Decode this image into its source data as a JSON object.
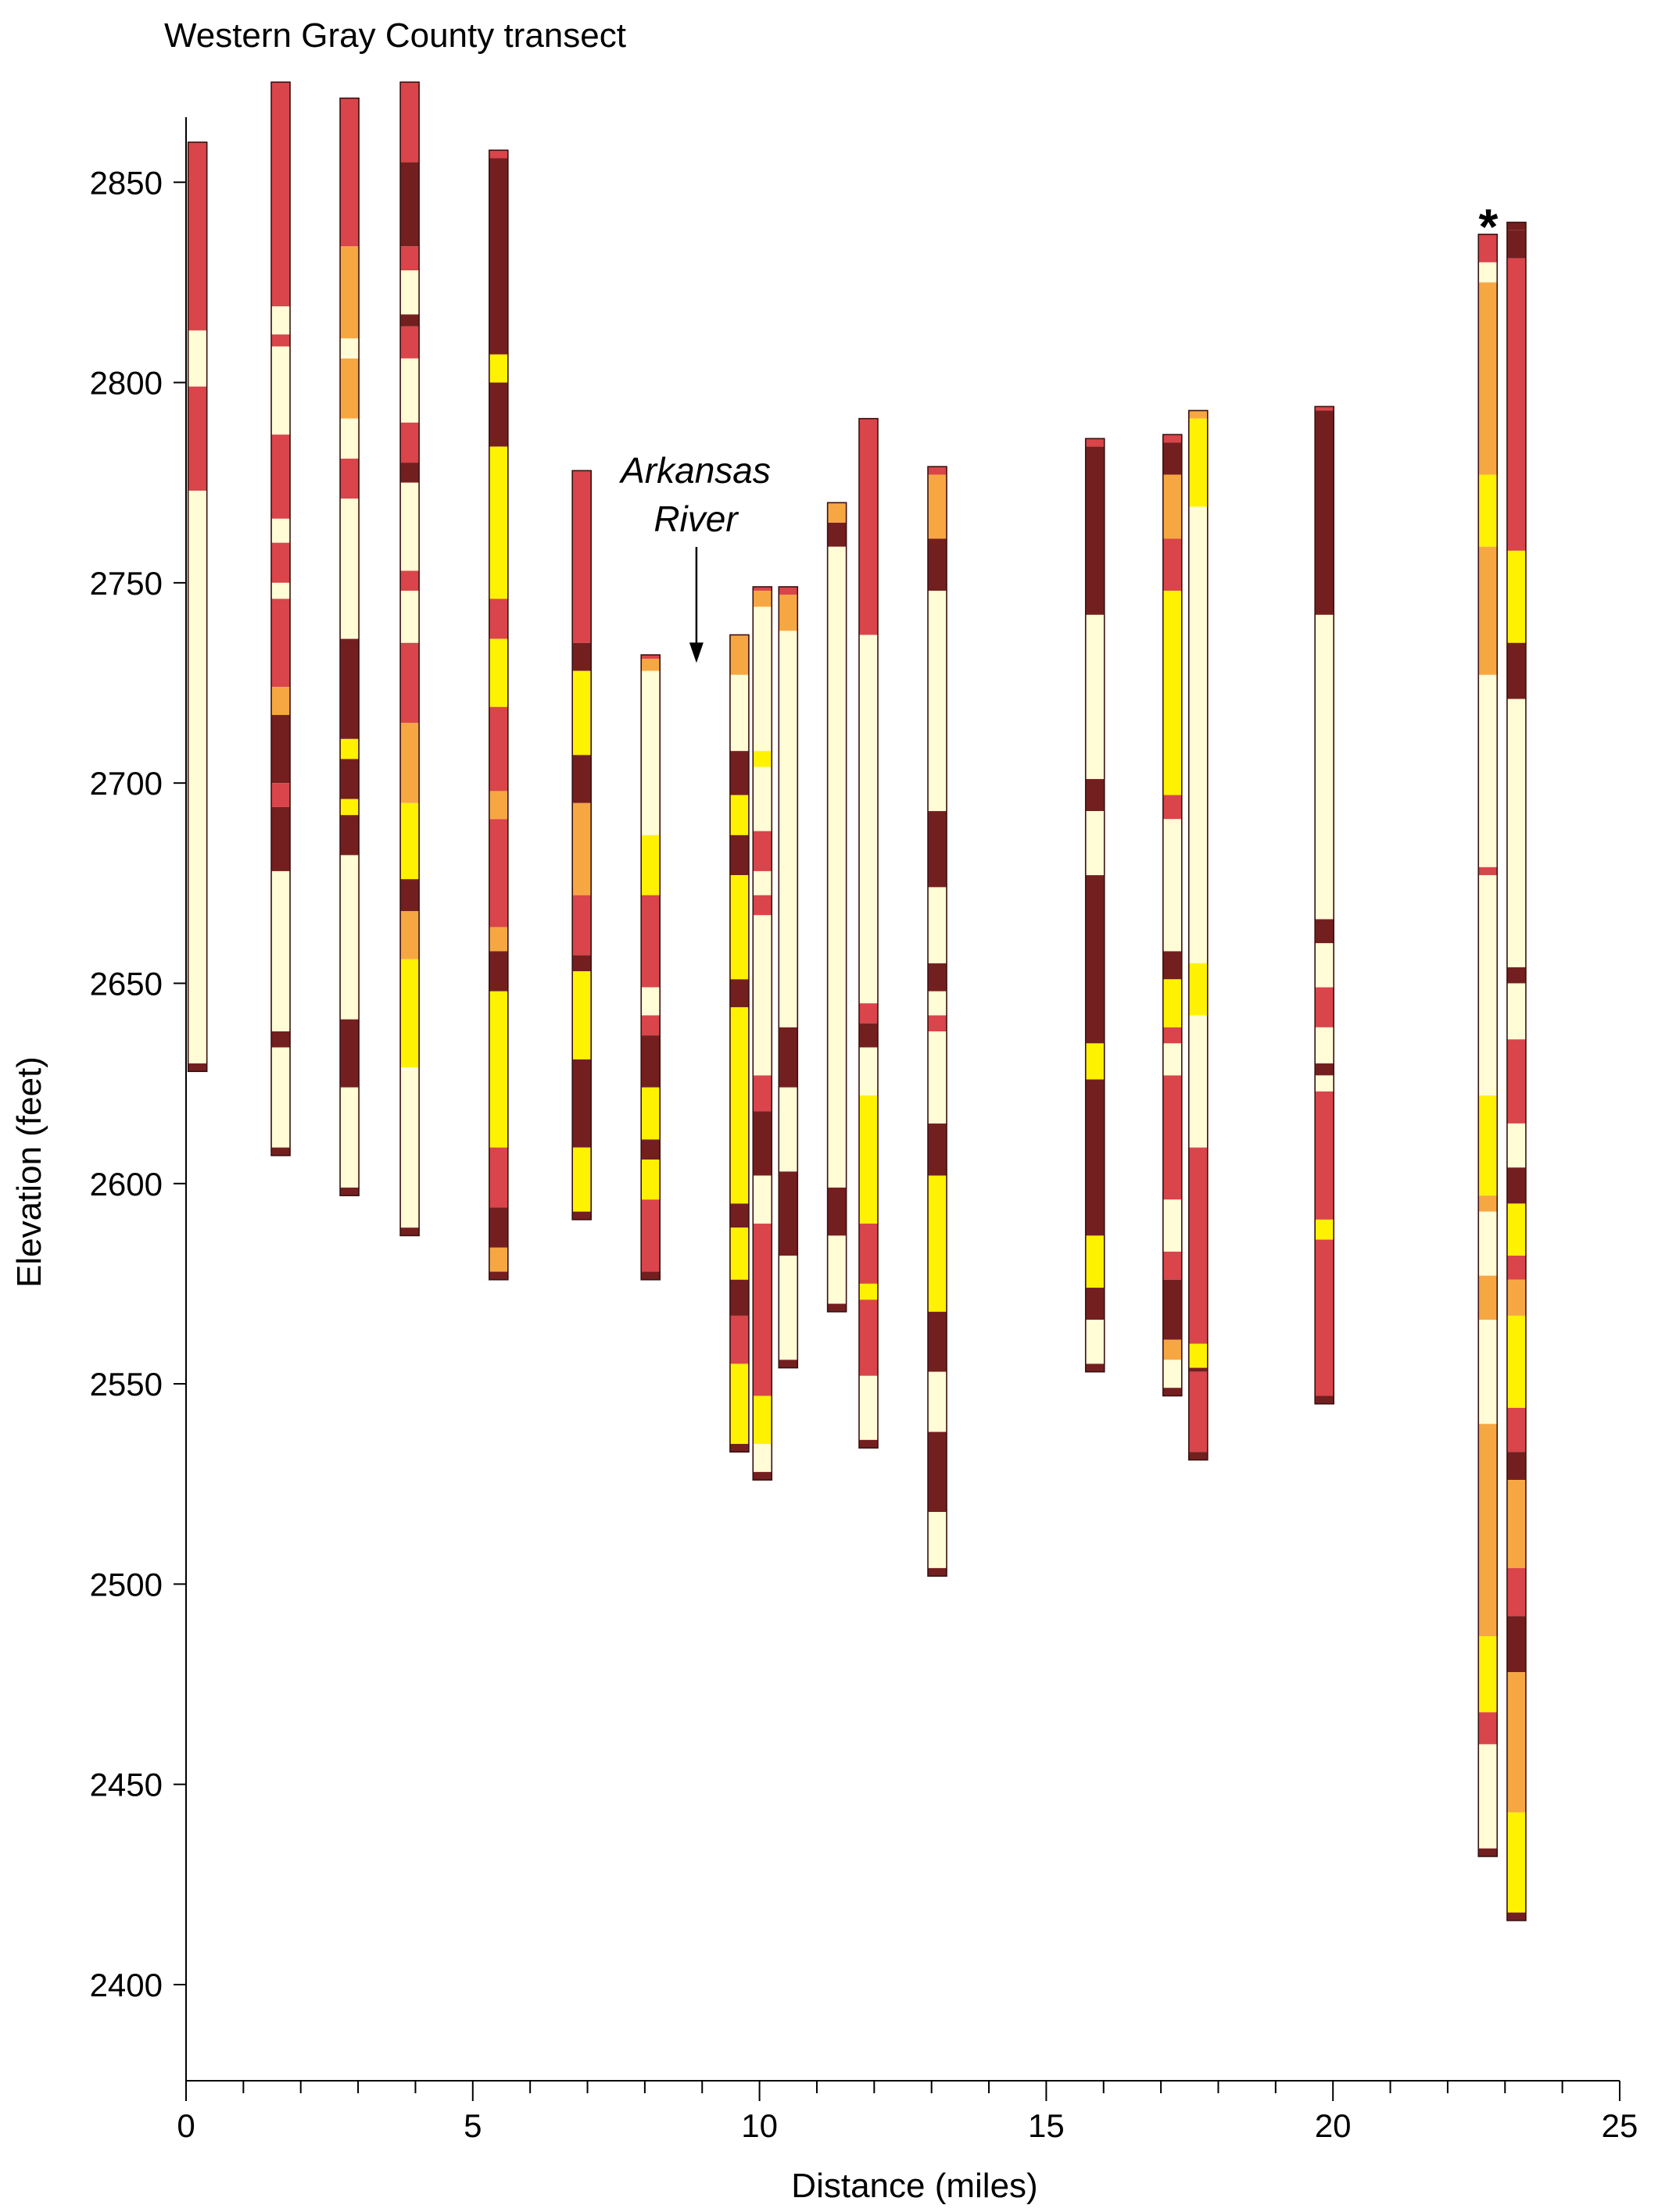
{
  "chart_data": {
    "type": "bar",
    "title": "Western Gray County transect",
    "xlabel": "Distance (miles)",
    "ylabel": "Elevation (feet)",
    "xlim": [
      0,
      25
    ],
    "ylim": [
      2376,
      2876
    ],
    "x_ticks_major": [
      0,
      5,
      10,
      15,
      20,
      25
    ],
    "x_tick_labels": [
      "0",
      "5",
      "10",
      "15",
      "20",
      "25"
    ],
    "x_tick_minor_step": 1,
    "y_ticks": [
      2400,
      2450,
      2500,
      2550,
      2600,
      2650,
      2700,
      2750,
      2800,
      2850
    ],
    "y_tick_labels": [
      "2400",
      "2450",
      "2500",
      "2550",
      "2600",
      "2650",
      "2700",
      "2750",
      "2800",
      "2850"
    ],
    "grid": false,
    "legend": "none",
    "colors": {
      "L": "#FFFCD6",
      "Y": "#FFF200",
      "O": "#F7A742",
      "R": "#D9454A",
      "D": "#741F1F"
    },
    "annotations": [
      {
        "text_line1": "Arkansas",
        "text_line2": "River",
        "x": 8.9,
        "y": 2730,
        "arrow": "down"
      },
      {
        "text": "*",
        "x": 22.7,
        "y": 2839
      }
    ],
    "wells": [
      {
        "x": 0.2,
        "top": 2860,
        "bottom": 2628,
        "layers": [
          [
            "R",
            2813
          ],
          [
            "L",
            2799
          ],
          [
            "R",
            2773
          ],
          [
            "L",
            2630
          ],
          [
            "D",
            2628
          ]
        ]
      },
      {
        "x": 1.65,
        "top": 2875,
        "bottom": 2607,
        "layers": [
          [
            "R",
            2819
          ],
          [
            "L",
            2812
          ],
          [
            "R",
            2809
          ],
          [
            "L",
            2787
          ],
          [
            "R",
            2766
          ],
          [
            "L",
            2760
          ],
          [
            "R",
            2750
          ],
          [
            "L",
            2746
          ],
          [
            "R",
            2724
          ],
          [
            "O",
            2717
          ],
          [
            "D",
            2700
          ],
          [
            "R",
            2694
          ],
          [
            "D",
            2678
          ],
          [
            "L",
            2638
          ],
          [
            "D",
            2634
          ],
          [
            "L",
            2609
          ],
          [
            "D",
            2607
          ]
        ]
      },
      {
        "x": 2.85,
        "top": 2871,
        "bottom": 2597,
        "layers": [
          [
            "R",
            2834
          ],
          [
            "O",
            2811
          ],
          [
            "L",
            2806
          ],
          [
            "O",
            2791
          ],
          [
            "L",
            2781
          ],
          [
            "R",
            2771
          ],
          [
            "L",
            2736
          ],
          [
            "D",
            2711
          ],
          [
            "Y",
            2706
          ],
          [
            "D",
            2696
          ],
          [
            "Y",
            2692
          ],
          [
            "D",
            2682
          ],
          [
            "L",
            2641
          ],
          [
            "D",
            2624
          ],
          [
            "L",
            2599
          ],
          [
            "D",
            2597
          ]
        ]
      },
      {
        "x": 3.9,
        "top": 2875,
        "bottom": 2587,
        "layers": [
          [
            "R",
            2855
          ],
          [
            "D",
            2834
          ],
          [
            "R",
            2828
          ],
          [
            "L",
            2817
          ],
          [
            "D",
            2814
          ],
          [
            "R",
            2806
          ],
          [
            "L",
            2790
          ],
          [
            "R",
            2780
          ],
          [
            "D",
            2775
          ],
          [
            "L",
            2753
          ],
          [
            "R",
            2748
          ],
          [
            "L",
            2735
          ],
          [
            "R",
            2715
          ],
          [
            "O",
            2695
          ],
          [
            "Y",
            2676
          ],
          [
            "D",
            2668
          ],
          [
            "O",
            2656
          ],
          [
            "Y",
            2629
          ],
          [
            "L",
            2589
          ],
          [
            "D",
            2587
          ]
        ]
      },
      {
        "x": 5.45,
        "top": 2858,
        "bottom": 2576,
        "layers": [
          [
            "R",
            2856
          ],
          [
            "D",
            2807
          ],
          [
            "Y",
            2800
          ],
          [
            "D",
            2784
          ],
          [
            "Y",
            2746
          ],
          [
            "R",
            2736
          ],
          [
            "Y",
            2719
          ],
          [
            "R",
            2698
          ],
          [
            "O",
            2691
          ],
          [
            "R",
            2664
          ],
          [
            "O",
            2658
          ],
          [
            "D",
            2648
          ],
          [
            "Y",
            2609
          ],
          [
            "R",
            2594
          ],
          [
            "D",
            2584
          ],
          [
            "O",
            2578
          ],
          [
            "D",
            2576
          ]
        ]
      },
      {
        "x": 6.9,
        "top": 2778,
        "bottom": 2591,
        "layers": [
          [
            "R",
            2735
          ],
          [
            "D",
            2728
          ],
          [
            "Y",
            2707
          ],
          [
            "D",
            2695
          ],
          [
            "O",
            2672
          ],
          [
            "R",
            2657
          ],
          [
            "D",
            2653
          ],
          [
            "Y",
            2631
          ],
          [
            "D",
            2609
          ],
          [
            "Y",
            2593
          ],
          [
            "D",
            2591
          ]
        ]
      },
      {
        "x": 8.1,
        "top": 2732,
        "bottom": 2576,
        "layers": [
          [
            "R",
            2731
          ],
          [
            "O",
            2728
          ],
          [
            "L",
            2687
          ],
          [
            "Y",
            2672
          ],
          [
            "R",
            2649
          ],
          [
            "L",
            2642
          ],
          [
            "R",
            2637
          ],
          [
            "D",
            2624
          ],
          [
            "Y",
            2611
          ],
          [
            "D",
            2606
          ],
          [
            "Y",
            2596
          ],
          [
            "R",
            2578
          ],
          [
            "D",
            2576
          ]
        ]
      },
      {
        "x": 9.65,
        "top": 2737,
        "bottom": 2533,
        "layers": [
          [
            "O",
            2727
          ],
          [
            "L",
            2708
          ],
          [
            "D",
            2697
          ],
          [
            "Y",
            2687
          ],
          [
            "D",
            2677
          ],
          [
            "Y",
            2651
          ],
          [
            "D",
            2644
          ],
          [
            "Y",
            2595
          ],
          [
            "D",
            2589
          ],
          [
            "Y",
            2576
          ],
          [
            "D",
            2567
          ],
          [
            "R",
            2555
          ],
          [
            "Y",
            2535
          ],
          [
            "D",
            2533
          ]
        ]
      },
      {
        "x": 10.05,
        "top": 2749,
        "bottom": 2526,
        "layers": [
          [
            "R",
            2748
          ],
          [
            "O",
            2744
          ],
          [
            "L",
            2708
          ],
          [
            "Y",
            2704
          ],
          [
            "L",
            2688
          ],
          [
            "R",
            2678
          ],
          [
            "L",
            2672
          ],
          [
            "R",
            2667
          ],
          [
            "L",
            2627
          ],
          [
            "R",
            2618
          ],
          [
            "D",
            2602
          ],
          [
            "L",
            2590
          ],
          [
            "R",
            2547
          ],
          [
            "Y",
            2535
          ],
          [
            "L",
            2528
          ],
          [
            "D",
            2526
          ]
        ]
      },
      {
        "x": 10.5,
        "top": 2749,
        "bottom": 2554,
        "layers": [
          [
            "R",
            2747
          ],
          [
            "O",
            2738
          ],
          [
            "L",
            2639
          ],
          [
            "D",
            2624
          ],
          [
            "L",
            2603
          ],
          [
            "D",
            2582
          ],
          [
            "L",
            2556
          ],
          [
            "D",
            2554
          ]
        ]
      },
      {
        "x": 11.35,
        "top": 2770,
        "bottom": 2568,
        "layers": [
          [
            "O",
            2765
          ],
          [
            "D",
            2759
          ],
          [
            "L",
            2599
          ],
          [
            "D",
            2587
          ],
          [
            "L",
            2570
          ],
          [
            "D",
            2568
          ]
        ]
      },
      {
        "x": 11.9,
        "top": 2791,
        "bottom": 2534,
        "layers": [
          [
            "R",
            2737
          ],
          [
            "L",
            2645
          ],
          [
            "R",
            2640
          ],
          [
            "D",
            2634
          ],
          [
            "L",
            2622
          ],
          [
            "Y",
            2590
          ],
          [
            "R",
            2575
          ],
          [
            "Y",
            2571
          ],
          [
            "R",
            2552
          ],
          [
            "L",
            2536
          ],
          [
            "D",
            2534
          ]
        ]
      },
      {
        "x": 13.1,
        "top": 2779,
        "bottom": 2502,
        "layers": [
          [
            "R",
            2777
          ],
          [
            "O",
            2761
          ],
          [
            "D",
            2748
          ],
          [
            "L",
            2693
          ],
          [
            "D",
            2674
          ],
          [
            "L",
            2655
          ],
          [
            "D",
            2648
          ],
          [
            "L",
            2642
          ],
          [
            "R",
            2638
          ],
          [
            "L",
            2615
          ],
          [
            "D",
            2602
          ],
          [
            "Y",
            2568
          ],
          [
            "D",
            2553
          ],
          [
            "L",
            2538
          ],
          [
            "D",
            2518
          ],
          [
            "L",
            2504
          ],
          [
            "D",
            2502
          ]
        ]
      },
      {
        "x": 15.85,
        "top": 2786,
        "bottom": 2553,
        "layers": [
          [
            "R",
            2784
          ],
          [
            "D",
            2742
          ],
          [
            "L",
            2701
          ],
          [
            "D",
            2693
          ],
          [
            "L",
            2677
          ],
          [
            "D",
            2635
          ],
          [
            "Y",
            2626
          ],
          [
            "D",
            2587
          ],
          [
            "Y",
            2574
          ],
          [
            "D",
            2566
          ],
          [
            "L",
            2555
          ],
          [
            "D",
            2553
          ]
        ]
      },
      {
        "x": 17.2,
        "top": 2787,
        "bottom": 2547,
        "layers": [
          [
            "R",
            2785
          ],
          [
            "D",
            2777
          ],
          [
            "O",
            2761
          ],
          [
            "R",
            2748
          ],
          [
            "Y",
            2697
          ],
          [
            "R",
            2691
          ],
          [
            "L",
            2658
          ],
          [
            "D",
            2651
          ],
          [
            "Y",
            2639
          ],
          [
            "R",
            2635
          ],
          [
            "L",
            2627
          ],
          [
            "R",
            2596
          ],
          [
            "L",
            2583
          ],
          [
            "R",
            2576
          ],
          [
            "D",
            2561
          ],
          [
            "O",
            2556
          ],
          [
            "L",
            2549
          ],
          [
            "D",
            2547
          ]
        ]
      },
      {
        "x": 17.65,
        "top": 2793,
        "bottom": 2531,
        "layers": [
          [
            "O",
            2791
          ],
          [
            "Y",
            2769
          ],
          [
            "L",
            2655
          ],
          [
            "Y",
            2642
          ],
          [
            "L",
            2609
          ],
          [
            "R",
            2560
          ],
          [
            "Y",
            2554
          ],
          [
            "D",
            2553
          ],
          [
            "R",
            2533
          ],
          [
            "D",
            2531
          ]
        ]
      },
      {
        "x": 19.85,
        "top": 2794,
        "bottom": 2545,
        "layers": [
          [
            "R",
            2793
          ],
          [
            "D",
            2742
          ],
          [
            "L",
            2666
          ],
          [
            "D",
            2660
          ],
          [
            "L",
            2649
          ],
          [
            "R",
            2639
          ],
          [
            "L",
            2630
          ],
          [
            "D",
            2627
          ],
          [
            "L",
            2623
          ],
          [
            "R",
            2591
          ],
          [
            "Y",
            2586
          ],
          [
            "R",
            2547
          ],
          [
            "D",
            2545
          ]
        ]
      },
      {
        "x": 22.7,
        "top": 2837,
        "bottom": 2432,
        "layers": [
          [
            "R",
            2830
          ],
          [
            "L",
            2825
          ],
          [
            "O",
            2777
          ],
          [
            "Y",
            2759
          ],
          [
            "O",
            2727
          ],
          [
            "L",
            2679
          ],
          [
            "R",
            2677
          ],
          [
            "L",
            2622
          ],
          [
            "Y",
            2597
          ],
          [
            "O",
            2593
          ],
          [
            "L",
            2577
          ],
          [
            "O",
            2566
          ],
          [
            "L",
            2540
          ],
          [
            "O",
            2487
          ],
          [
            "Y",
            2468
          ],
          [
            "R",
            2460
          ],
          [
            "L",
            2434
          ],
          [
            "D",
            2432
          ]
        ]
      },
      {
        "x": 23.2,
        "top": 2840,
        "bottom": 2416,
        "layers": [
          [
            "D",
            2838
          ],
          [
            "D",
            2831
          ],
          [
            "R",
            2758
          ],
          [
            "Y",
            2735
          ],
          [
            "D",
            2721
          ],
          [
            "L",
            2654
          ],
          [
            "D",
            2650
          ],
          [
            "L",
            2636
          ],
          [
            "R",
            2615
          ],
          [
            "L",
            2604
          ],
          [
            "D",
            2595
          ],
          [
            "Y",
            2582
          ],
          [
            "R",
            2576
          ],
          [
            "O",
            2567
          ],
          [
            "Y",
            2544
          ],
          [
            "R",
            2533
          ],
          [
            "D",
            2526
          ],
          [
            "O",
            2504
          ],
          [
            "R",
            2492
          ],
          [
            "D",
            2478
          ],
          [
            "O",
            2443
          ],
          [
            "Y",
            2418
          ],
          [
            "D",
            2416
          ]
        ]
      }
    ]
  }
}
